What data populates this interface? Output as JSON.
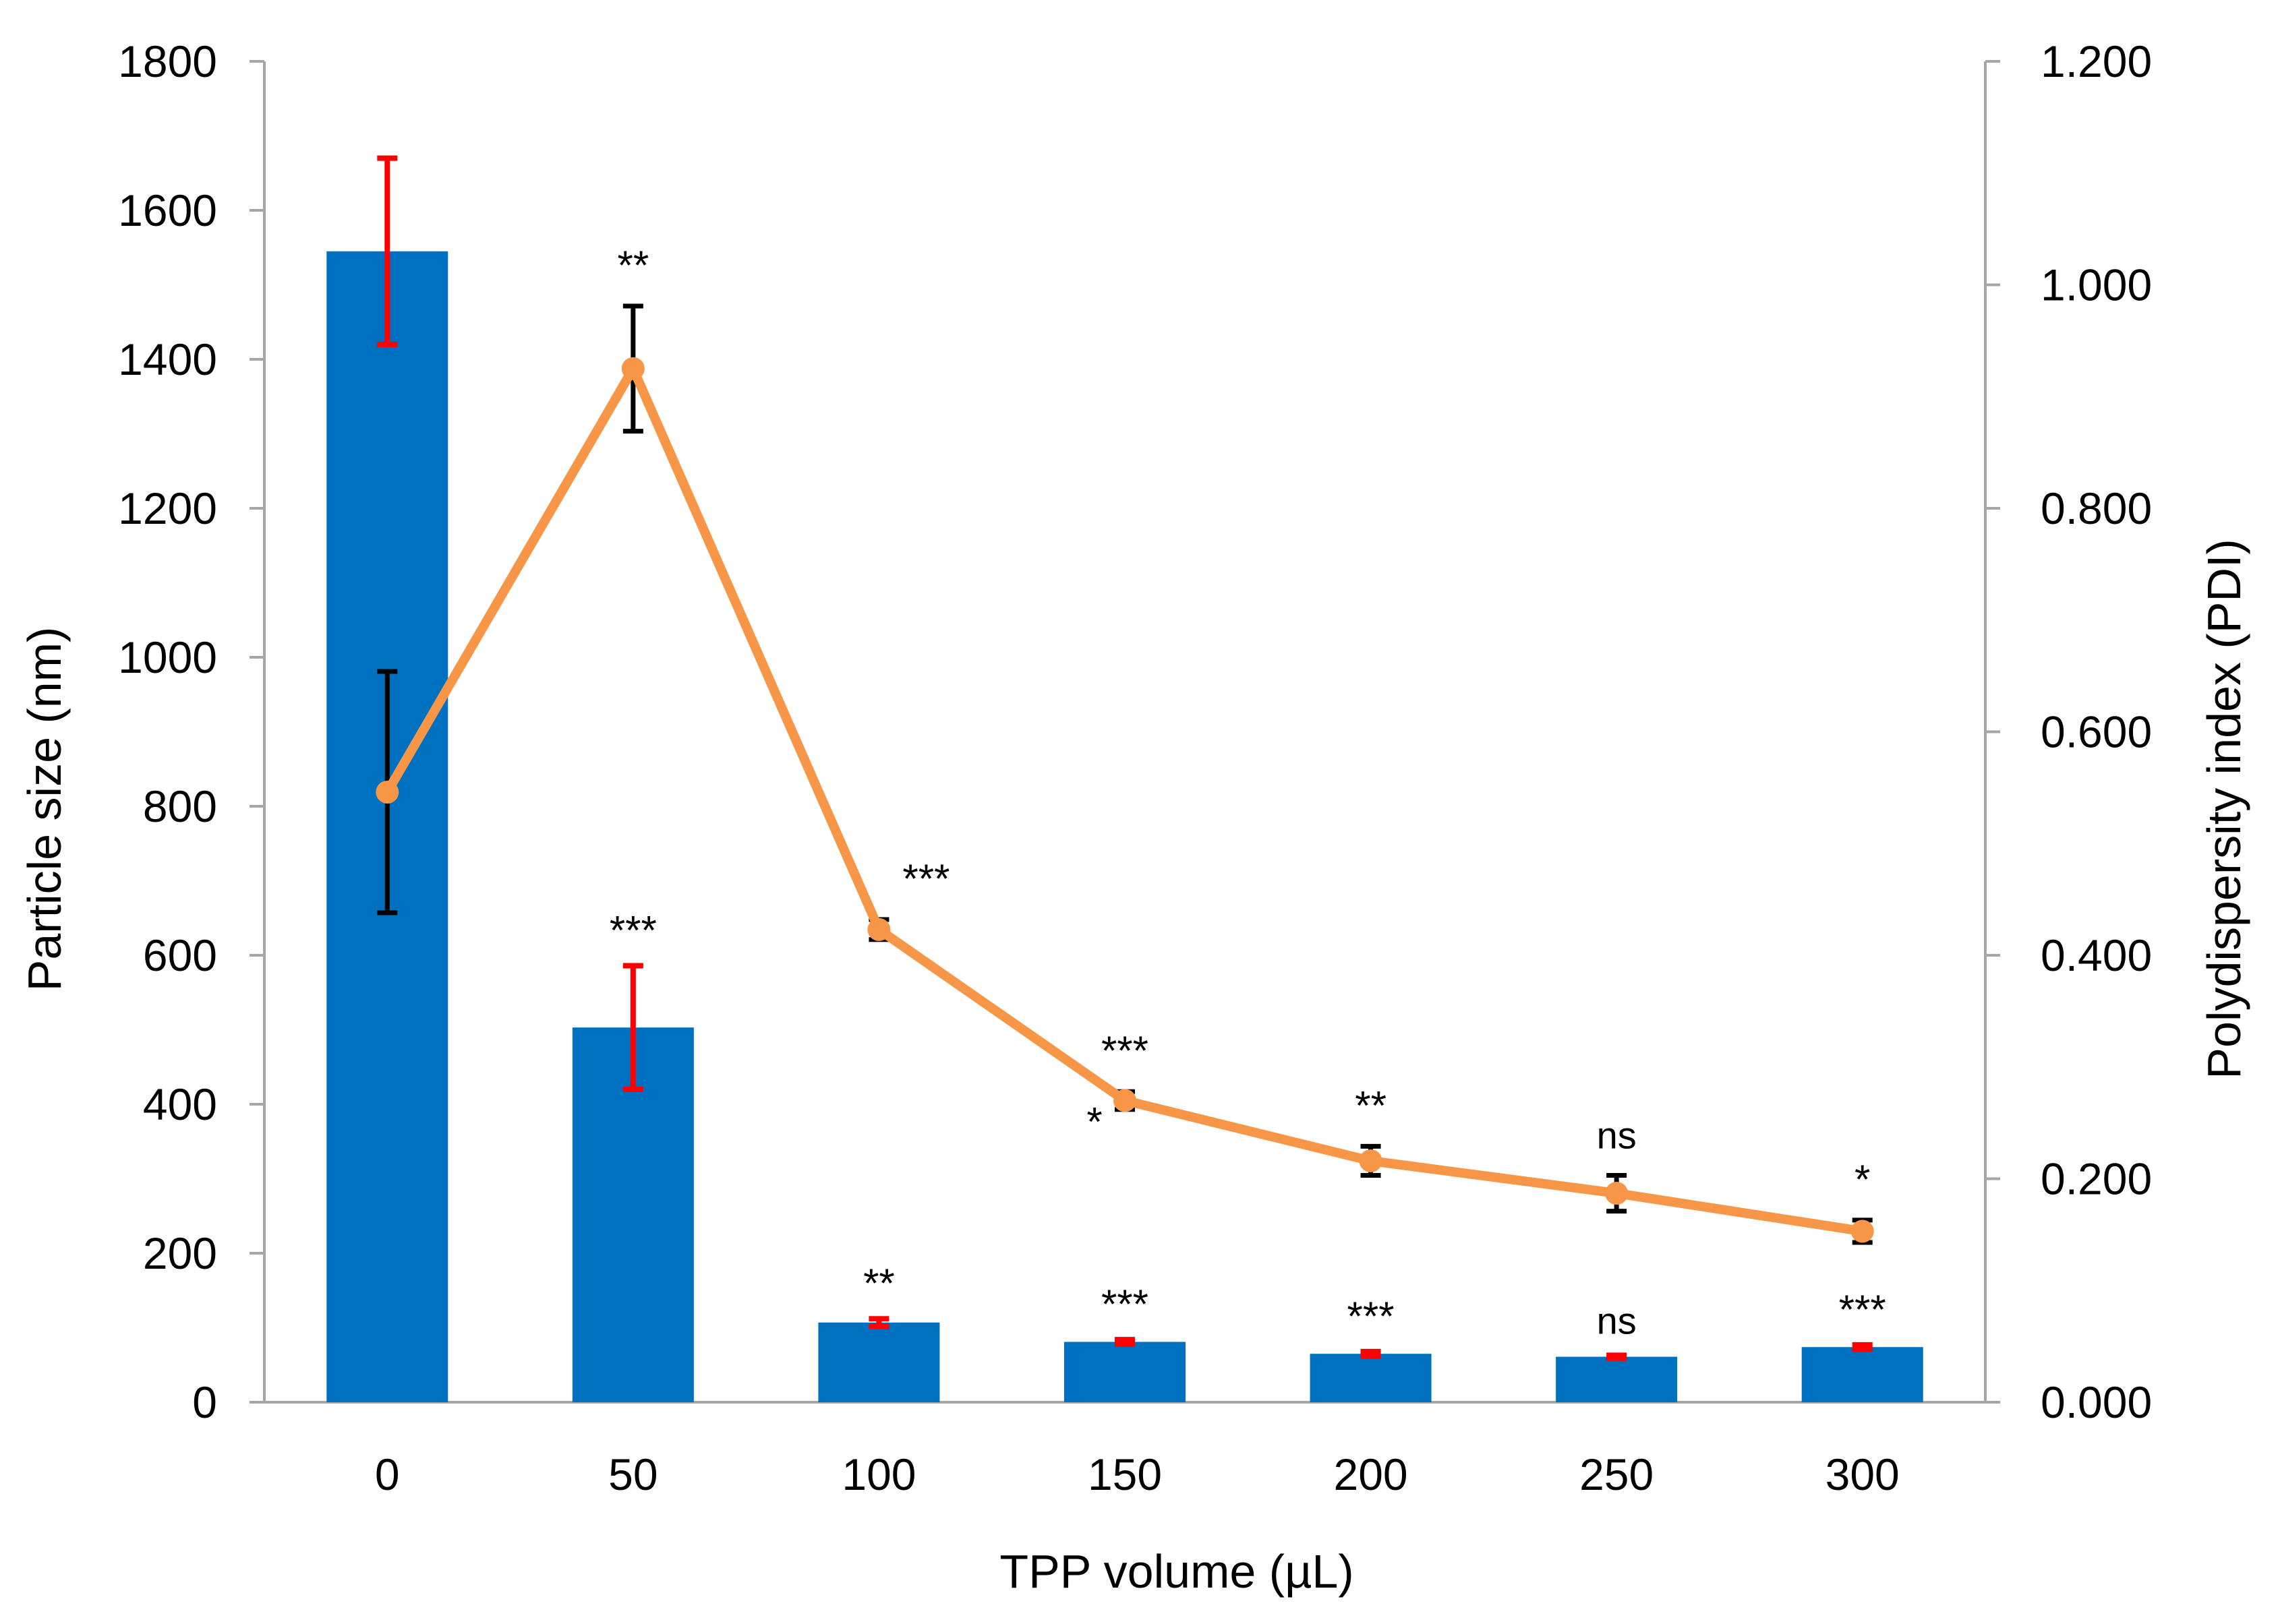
{
  "chart_data": {
    "type": "bar+line",
    "x_title": "TPP volume (µL)",
    "categories": [
      "0",
      "50",
      "100",
      "150",
      "200",
      "250",
      "300"
    ],
    "bar_series": {
      "name": "Particle size (nm)",
      "color": "#0070C0",
      "error_color": "#FF0000",
      "values": [
        1545,
        503,
        107,
        81,
        65,
        61,
        74
      ],
      "errors": [
        125,
        83,
        5,
        3,
        3,
        2,
        3
      ],
      "significance": [
        "",
        "***",
        "**",
        "***",
        "***",
        "ns",
        "***"
      ]
    },
    "line_series": {
      "name": "Polydispersity index (PDI)",
      "color": "#F79646",
      "error_color": "#000000",
      "values": [
        0.546,
        0.925,
        0.423,
        0.27,
        0.216,
        0.187,
        0.153
      ],
      "errors": [
        0.108,
        0.056,
        0.009,
        0.008,
        0.013,
        0.016,
        0.01
      ],
      "significance": [
        "",
        "**",
        "***",
        "***",
        "**",
        "ns",
        "*"
      ]
    },
    "y_left": {
      "title": "Particle size (nm)",
      "min": 0,
      "max": 1800,
      "step": 200,
      "ticks": [
        "0",
        "200",
        "400",
        "600",
        "800",
        "1000",
        "1200",
        "1400",
        "1600",
        "1800"
      ]
    },
    "y_right": {
      "title": "Polydispersity index (PDI)",
      "min": 0,
      "max": 1.2,
      "step": 0.2,
      "ticks": [
        "0.000",
        "0.200",
        "0.400",
        "0.600",
        "0.800",
        "1.000",
        "1.200"
      ]
    },
    "extra_annotations": [
      {
        "text": "*",
        "category": "150",
        "near": "line-left"
      }
    ],
    "grid": false,
    "legend": "none",
    "axis_color": "#A6A6A6"
  }
}
